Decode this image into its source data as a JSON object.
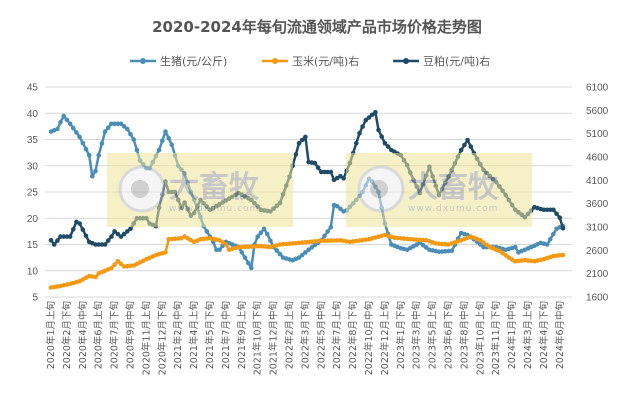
{
  "chart_data": {
    "type": "line",
    "title": "2020-2024年每旬流通领域产品市场价格走势图",
    "x_count": 162,
    "tick_step": 5,
    "tick_labels": [
      "2020年1月上旬",
      "2020年2月下旬",
      "2020年4月中旬",
      "2020年6月上旬",
      "2020年7月下旬",
      "2020年9月中旬",
      "2020年11月上旬",
      "2020年12月下旬",
      "2021年2月中旬",
      "2021年4月上旬",
      "2021年5月下旬",
      "2021年7月中旬",
      "2021年9月上旬",
      "2021年10月下旬",
      "2021年12月中旬",
      "2022年2月上旬",
      "2022年3月下旬",
      "2022年5月中旬",
      "2022年7月上旬",
      "2022年8月下旬",
      "2022年10月中旬",
      "2022年12月上旬",
      "2023年1月下旬",
      "2023年3月中旬",
      "2023年5月上旬",
      "2023年6月下旬",
      "2023年8月中旬",
      "2023年10月上旬",
      "2023年11月下旬",
      "2024年1月中旬",
      "2024年3月上旬",
      "2024年4月下旬",
      "2024年6月中旬"
    ],
    "y_left": {
      "min": 5,
      "max": 45,
      "step": 5,
      "ticks": [
        "45",
        "40",
        "35",
        "30",
        "25",
        "20",
        "15",
        "10",
        "5"
      ]
    },
    "y_right": {
      "min": 1600,
      "max": 6100,
      "step": 500,
      "ticks": [
        "6100",
        "5600",
        "5100",
        "4600",
        "4100",
        "3600",
        "3100",
        "2600",
        "2100",
        "1600"
      ]
    },
    "grid": true,
    "legend_position": "top",
    "series": [
      {
        "name": "生猪(元/公斤)",
        "axis": "left",
        "color": "#4a8db7",
        "points": [
          [
            0,
            36.5
          ],
          [
            2,
            37
          ],
          [
            4,
            39.5
          ],
          [
            6,
            38
          ],
          [
            9,
            35.5
          ],
          [
            12,
            32
          ],
          [
            13,
            28
          ],
          [
            14,
            29
          ],
          [
            15,
            32
          ],
          [
            17,
            36.5
          ],
          [
            19,
            38
          ],
          [
            22,
            38
          ],
          [
            24,
            37
          ],
          [
            26,
            35
          ],
          [
            28,
            31
          ],
          [
            30,
            29.5
          ],
          [
            31,
            29.5
          ],
          [
            34,
            33
          ],
          [
            36,
            36.5
          ],
          [
            38,
            34
          ],
          [
            40,
            30
          ],
          [
            42,
            28.5
          ],
          [
            44,
            25
          ],
          [
            46,
            22
          ],
          [
            48,
            18.5
          ],
          [
            51,
            15.5
          ],
          [
            52,
            14
          ],
          [
            53,
            14
          ],
          [
            55,
            15.5
          ],
          [
            57,
            15
          ],
          [
            59,
            14.5
          ],
          [
            61,
            12.5
          ],
          [
            63,
            10.5
          ],
          [
            64,
            15
          ],
          [
            65,
            16.5
          ],
          [
            67,
            18
          ],
          [
            68,
            17
          ],
          [
            70,
            14.5
          ],
          [
            73,
            12.5
          ],
          [
            76,
            12
          ],
          [
            78,
            12.5
          ],
          [
            79,
            13
          ],
          [
            81,
            14
          ],
          [
            85,
            15.8
          ],
          [
            88,
            18.3
          ],
          [
            89,
            22.5
          ],
          [
            90,
            22.3
          ],
          [
            92,
            21.3
          ],
          [
            93,
            21.5
          ],
          [
            96,
            23.5
          ],
          [
            98,
            25
          ],
          [
            100,
            27.5
          ],
          [
            101,
            27
          ],
          [
            103,
            25
          ],
          [
            105,
            19
          ],
          [
            106,
            17
          ],
          [
            107,
            15
          ],
          [
            110,
            14.3
          ],
          [
            112,
            14
          ],
          [
            116,
            15.3
          ],
          [
            119,
            14
          ],
          [
            122,
            13.6
          ],
          [
            126,
            13.8
          ],
          [
            129,
            17.2
          ],
          [
            131,
            16.8
          ],
          [
            133,
            16
          ],
          [
            136,
            14.5
          ],
          [
            140,
            14.5
          ],
          [
            143,
            14
          ],
          [
            146,
            14.5
          ],
          [
            147,
            13.5
          ],
          [
            151,
            14.5
          ],
          [
            154,
            15.3
          ],
          [
            156,
            15
          ],
          [
            159,
            18
          ],
          [
            160,
            18.3
          ],
          [
            161,
            18.5
          ]
        ]
      },
      {
        "name": "玉米(元/吨)右",
        "axis": "right",
        "color": "#f39a12",
        "points": [
          [
            0,
            1803
          ],
          [
            3,
            1836
          ],
          [
            6,
            1881
          ],
          [
            9,
            1938
          ],
          [
            12,
            2050
          ],
          [
            14,
            2028
          ],
          [
            15,
            2106
          ],
          [
            19,
            2219
          ],
          [
            21,
            2365
          ],
          [
            23,
            2253
          ],
          [
            26,
            2275
          ],
          [
            30,
            2410
          ],
          [
            33,
            2500
          ],
          [
            36,
            2556
          ],
          [
            37,
            2838
          ],
          [
            41,
            2860
          ],
          [
            42,
            2894
          ],
          [
            45,
            2781
          ],
          [
            47,
            2838
          ],
          [
            50,
            2860
          ],
          [
            53,
            2815
          ],
          [
            55,
            2725
          ],
          [
            56,
            2613
          ],
          [
            59,
            2669
          ],
          [
            66,
            2691
          ],
          [
            69,
            2669
          ],
          [
            72,
            2725
          ],
          [
            78,
            2759
          ],
          [
            85,
            2804
          ],
          [
            91,
            2815
          ],
          [
            94,
            2781
          ],
          [
            100,
            2838
          ],
          [
            105,
            2928
          ],
          [
            108,
            2871
          ],
          [
            113,
            2838
          ],
          [
            118,
            2815
          ],
          [
            121,
            2748
          ],
          [
            125,
            2725
          ],
          [
            129,
            2815
          ],
          [
            132,
            2894
          ],
          [
            135,
            2815
          ],
          [
            138,
            2669
          ],
          [
            141,
            2590
          ],
          [
            144,
            2444
          ],
          [
            146,
            2365
          ],
          [
            149,
            2388
          ],
          [
            152,
            2365
          ],
          [
            155,
            2410
          ],
          [
            158,
            2478
          ],
          [
            161,
            2500
          ]
        ]
      },
      {
        "name": "豆粕(元/吨)右",
        "axis": "right",
        "color": "#1f4b66",
        "points": [
          [
            0,
            2815
          ],
          [
            1,
            2725
          ],
          [
            3,
            2894
          ],
          [
            6,
            2894
          ],
          [
            8,
            3209
          ],
          [
            9,
            3175
          ],
          [
            12,
            2781
          ],
          [
            14,
            2725
          ],
          [
            17,
            2725
          ],
          [
            19,
            2894
          ],
          [
            20,
            3006
          ],
          [
            22,
            2894
          ],
          [
            25,
            3063
          ],
          [
            27,
            3288
          ],
          [
            30,
            3288
          ],
          [
            31,
            3175
          ],
          [
            33,
            3119
          ],
          [
            34,
            3513
          ],
          [
            36,
            4075
          ],
          [
            37,
            3850
          ],
          [
            39,
            3850
          ],
          [
            41,
            3513
          ],
          [
            42,
            3625
          ],
          [
            44,
            3344
          ],
          [
            45,
            3400
          ],
          [
            47,
            3681
          ],
          [
            50,
            3468
          ],
          [
            59,
            3828
          ],
          [
            63,
            3681
          ],
          [
            66,
            3468
          ],
          [
            69,
            3434
          ],
          [
            72,
            3614
          ],
          [
            75,
            4176
          ],
          [
            78,
            4896
          ],
          [
            80,
            5031
          ],
          [
            81,
            4491
          ],
          [
            83,
            4469
          ],
          [
            85,
            4278
          ],
          [
            88,
            4278
          ],
          [
            89,
            4109
          ],
          [
            91,
            4188
          ],
          [
            92,
            4143
          ],
          [
            94,
            4469
          ],
          [
            97,
            5110
          ],
          [
            99,
            5391
          ],
          [
            102,
            5560
          ],
          [
            103,
            5178
          ],
          [
            105,
            4896
          ],
          [
            107,
            4750
          ],
          [
            110,
            4638
          ],
          [
            112,
            4424
          ],
          [
            114,
            4109
          ],
          [
            116,
            3828
          ],
          [
            119,
            4390
          ],
          [
            122,
            3783
          ],
          [
            125,
            4176
          ],
          [
            129,
            4750
          ],
          [
            131,
            4964
          ],
          [
            133,
            4683
          ],
          [
            136,
            4323
          ],
          [
            140,
            4064
          ],
          [
            143,
            3783
          ],
          [
            146,
            3468
          ],
          [
            149,
            3310
          ],
          [
            152,
            3524
          ],
          [
            155,
            3468
          ],
          [
            158,
            3468
          ],
          [
            160,
            3299
          ],
          [
            161,
            3074
          ]
        ]
      }
    ]
  },
  "watermark": {
    "brand": "大畜牧",
    "url": "www.dxumu.com"
  }
}
